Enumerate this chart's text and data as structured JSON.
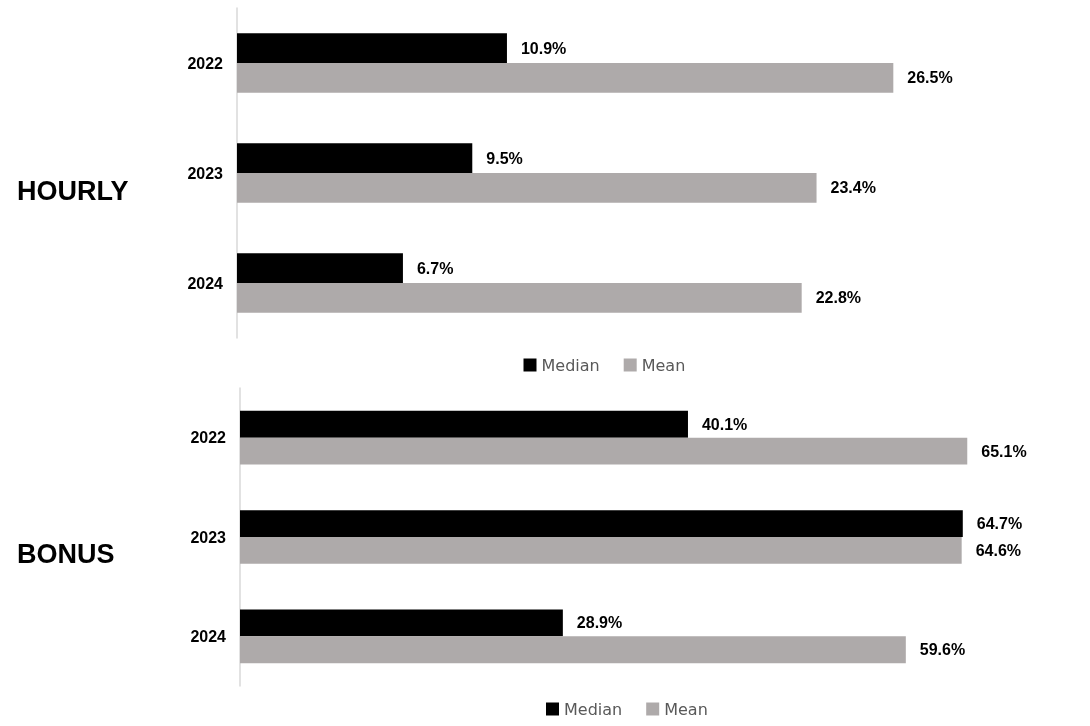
{
  "chart_data": [
    {
      "type": "bar",
      "title": "HOURLY",
      "orientation": "horizontal",
      "categories": [
        "2022",
        "2023",
        "2024"
      ],
      "series": [
        {
          "name": "Median",
          "color": "#000000",
          "values": [
            10.9,
            9.5,
            6.7
          ],
          "value_labels": [
            "10.9%",
            "9.5%",
            "6.7%"
          ]
        },
        {
          "name": "Mean",
          "color": "#aeaaaa",
          "values": [
            26.5,
            23.4,
            22.8
          ],
          "value_labels": [
            "26.5%",
            "23.4%",
            "22.8%"
          ]
        }
      ],
      "legend": "bottom"
    },
    {
      "type": "bar",
      "title": "BONUS",
      "orientation": "horizontal",
      "categories": [
        "2022",
        "2023",
        "2024"
      ],
      "series": [
        {
          "name": "Median",
          "color": "#000000",
          "values": [
            40.1,
            64.7,
            28.9
          ],
          "value_labels": [
            "40.1%",
            "64.7%",
            "28.9%"
          ]
        },
        {
          "name": "Mean",
          "color": "#aeaaaa",
          "values": [
            65.1,
            64.6,
            59.6
          ],
          "value_labels": [
            "65.1%",
            "64.6%",
            "59.6%"
          ]
        }
      ],
      "legend": "bottom"
    }
  ]
}
